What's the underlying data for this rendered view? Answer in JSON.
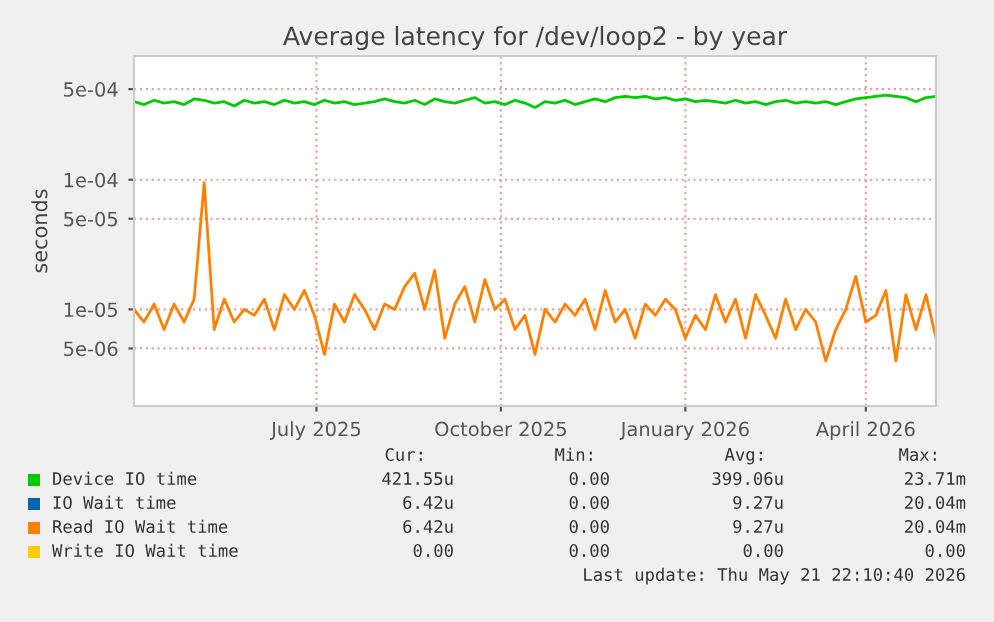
{
  "chart_data": {
    "type": "line",
    "title": "Average latency for /dev/loop2 - by year",
    "ylabel": "seconds",
    "log": "y",
    "grid": true,
    "legend": "bottom",
    "x": [
      "2025-04-16",
      "2025-04-21",
      "2025-04-26",
      "2025-05-01",
      "2025-05-06",
      "2025-05-11",
      "2025-05-16",
      "2025-05-21",
      "2025-05-26",
      "2025-05-31",
      "2025-06-05",
      "2025-06-10",
      "2025-06-15",
      "2025-06-20",
      "2025-06-25",
      "2025-06-30",
      "2025-07-05",
      "2025-07-10",
      "2025-07-15",
      "2025-07-20",
      "2025-07-25",
      "2025-07-30",
      "2025-08-04",
      "2025-08-09",
      "2025-08-14",
      "2025-08-19",
      "2025-08-24",
      "2025-08-29",
      "2025-09-03",
      "2025-09-08",
      "2025-09-13",
      "2025-09-18",
      "2025-09-23",
      "2025-09-28",
      "2025-10-03",
      "2025-10-08",
      "2025-10-13",
      "2025-10-18",
      "2025-10-23",
      "2025-10-28",
      "2025-11-02",
      "2025-11-07",
      "2025-11-12",
      "2025-11-17",
      "2025-11-22",
      "2025-11-27",
      "2025-12-02",
      "2025-12-07",
      "2025-12-12",
      "2025-12-17",
      "2025-12-22",
      "2025-12-27",
      "2026-01-01",
      "2026-01-06",
      "2026-01-11",
      "2026-01-16",
      "2026-01-21",
      "2026-01-26",
      "2026-01-31",
      "2026-02-05",
      "2026-02-10",
      "2026-02-15",
      "2026-02-20",
      "2026-02-25",
      "2026-03-02",
      "2026-03-07",
      "2026-03-12",
      "2026-03-17",
      "2026-03-22",
      "2026-03-27",
      "2026-04-01",
      "2026-04-06",
      "2026-04-11",
      "2026-04-16",
      "2026-04-21",
      "2026-04-26",
      "2026-05-01",
      "2026-05-06",
      "2026-05-11",
      "2026-05-16",
      "2026-05-21"
    ],
    "xlim": [
      "2025-04-16",
      "2026-05-21"
    ],
    "xticks": [
      {
        "value": "2025-07-16",
        "label": "July 2025"
      },
      {
        "value": "2025-10-16",
        "label": "October 2025"
      },
      {
        "value": "2026-01-16",
        "label": "January 2026"
      },
      {
        "value": "2026-04-16",
        "label": "April 2026"
      }
    ],
    "ylim": [
      1.8e-06,
      0.0009
    ],
    "yticks": [
      {
        "value": 5e-06,
        "label": "5e-06"
      },
      {
        "value": 1e-05,
        "label": "1e-05"
      },
      {
        "value": 5e-05,
        "label": "5e-05"
      },
      {
        "value": 0.0001,
        "label": "1e-04"
      },
      {
        "value": 0.0005,
        "label": "5e-04"
      }
    ],
    "series": [
      {
        "name": "Device IO time",
        "color": "#00cc00",
        "values": [
          0.0004,
          0.00038,
          0.00041,
          0.00039,
          0.0004,
          0.00038,
          0.00042,
          0.00041,
          0.00039,
          0.0004,
          0.00037,
          0.00041,
          0.00039,
          0.0004,
          0.00038,
          0.00041,
          0.00039,
          0.0004,
          0.00038,
          0.00041,
          0.00039,
          0.0004,
          0.00038,
          0.00039,
          0.0004,
          0.00042,
          0.0004,
          0.00039,
          0.00041,
          0.00038,
          0.00042,
          0.0004,
          0.00039,
          0.00041,
          0.00043,
          0.00039,
          0.0004,
          0.00038,
          0.00041,
          0.00039,
          0.00036,
          0.0004,
          0.00039,
          0.00041,
          0.00038,
          0.0004,
          0.00042,
          0.0004,
          0.00043,
          0.00044,
          0.00043,
          0.00044,
          0.00042,
          0.00043,
          0.00041,
          0.00042,
          0.0004,
          0.00041,
          0.0004,
          0.00039,
          0.00041,
          0.00039,
          0.0004,
          0.00038,
          0.0004,
          0.00041,
          0.00039,
          0.0004,
          0.00039,
          0.0004,
          0.00038,
          0.0004,
          0.00042,
          0.00043,
          0.00044,
          0.00045,
          0.00044,
          0.00043,
          0.0004,
          0.00043,
          0.00044
        ]
      },
      {
        "name": "IO Wait time",
        "color": "#0066b3",
        "values": [
          null,
          null,
          null,
          null,
          null,
          null,
          null,
          null,
          null,
          null,
          null,
          null,
          null,
          null,
          null,
          null,
          null,
          null,
          null,
          null,
          null,
          null,
          null,
          null,
          null,
          null,
          null,
          null,
          null,
          null,
          null,
          null,
          null,
          null,
          null,
          null,
          null,
          null,
          null,
          null,
          null,
          null,
          null,
          null,
          null,
          null,
          null,
          null,
          null,
          null,
          null,
          null,
          null,
          null,
          null,
          null,
          null,
          null,
          null,
          null,
          null,
          null,
          null,
          null,
          null,
          null,
          null,
          null,
          null,
          null,
          null,
          null,
          null,
          null,
          null,
          null,
          null,
          null,
          null,
          null,
          null
        ]
      },
      {
        "name": "Read IO Wait time",
        "color": "#ff8000",
        "values": [
          1e-05,
          8e-06,
          1.1e-05,
          7e-06,
          1.1e-05,
          8e-06,
          1.2e-05,
          9.5e-05,
          7e-06,
          1.2e-05,
          8e-06,
          1e-05,
          9e-06,
          1.2e-05,
          7e-06,
          1.3e-05,
          1e-05,
          1.4e-05,
          9e-06,
          4.5e-06,
          1.1e-05,
          8e-06,
          1.3e-05,
          1e-05,
          7e-06,
          1.1e-05,
          1e-05,
          1.5e-05,
          1.9e-05,
          1e-05,
          2e-05,
          6e-06,
          1.1e-05,
          1.5e-05,
          8e-06,
          1.7e-05,
          1e-05,
          1.2e-05,
          7e-06,
          9e-06,
          4.5e-06,
          1e-05,
          8e-06,
          1.1e-05,
          9e-06,
          1.2e-05,
          7e-06,
          1.4e-05,
          8e-06,
          1e-05,
          6e-06,
          1.1e-05,
          9e-06,
          1.2e-05,
          1e-05,
          6e-06,
          9e-06,
          7e-06,
          1.3e-05,
          8e-06,
          1.2e-05,
          6e-06,
          1.3e-05,
          9e-06,
          6e-06,
          1.2e-05,
          7e-06,
          1e-05,
          8e-06,
          4e-06,
          7e-06,
          1e-05,
          1.8e-05,
          8e-06,
          9e-06,
          1.4e-05,
          4e-06,
          1.3e-05,
          7e-06,
          1.3e-05,
          6e-06
        ]
      },
      {
        "name": "Write IO Wait time",
        "color": "#ffcc00",
        "values": [
          null,
          null,
          null,
          null,
          null,
          null,
          null,
          null,
          null,
          null,
          null,
          null,
          null,
          null,
          null,
          null,
          null,
          null,
          null,
          null,
          null,
          null,
          null,
          null,
          null,
          null,
          null,
          null,
          null,
          null,
          null,
          null,
          null,
          null,
          null,
          null,
          null,
          null,
          null,
          null,
          null,
          null,
          null,
          null,
          null,
          null,
          null,
          null,
          null,
          null,
          null,
          null,
          null,
          null,
          null,
          null,
          null,
          null,
          null,
          null,
          null,
          null,
          null,
          null,
          null,
          null,
          null,
          null,
          null,
          null,
          null,
          null,
          null,
          null,
          null,
          null,
          null,
          null,
          null,
          null,
          null
        ]
      }
    ],
    "annotations": [
      "Cur:",
      "Min:",
      "Avg:",
      "Max:",
      "421.55u",
      "0.00",
      "399.06u",
      "23.71m",
      "6.42u",
      "0.00",
      "9.27u",
      "20.04m",
      "6.42u",
      "0.00",
      "9.27u",
      "20.04m",
      "0.00",
      "0.00",
      "0.00",
      "0.00",
      "Last update: Thu May 21 22:10:40 2026"
    ]
  }
}
